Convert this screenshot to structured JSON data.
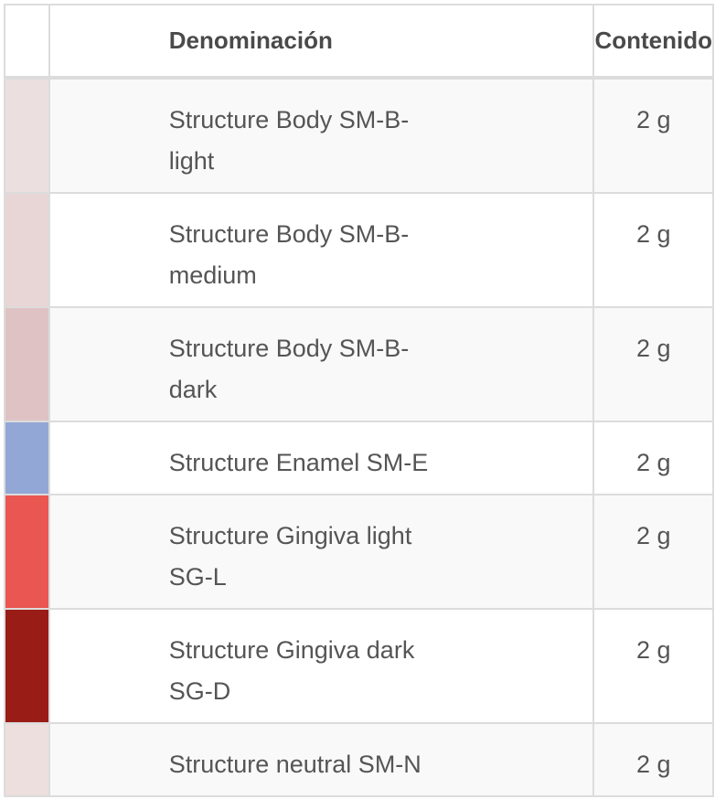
{
  "header": {
    "swatch": "",
    "name": "Denominación",
    "content": "Contenido"
  },
  "rows": [
    {
      "color": "#ecdfdf",
      "lines": [
        "Structure Body SM-B-",
        "light"
      ],
      "content": "2 g"
    },
    {
      "color": "#e8d5d5",
      "lines": [
        "Structure Body SM-B-",
        "medium"
      ],
      "content": "2 g"
    },
    {
      "color": "#dfc3c4",
      "lines": [
        "Structure Body SM-B-",
        "dark"
      ],
      "content": "2 g"
    },
    {
      "color": "#93a7d6",
      "lines": [
        "Structure Enamel SM-E"
      ],
      "content": "2 g"
    },
    {
      "color": "#ea5651",
      "lines": [
        "Structure Gingiva light",
        "SG-L"
      ],
      "content": "2 g"
    },
    {
      "color": "#9a1c16",
      "lines": [
        "Structure Gingiva dark",
        "SG-D"
      ],
      "content": "2 g"
    },
    {
      "color": "#ecdfde",
      "lines": [
        "Structure neutral SM-N"
      ],
      "content": "2 g"
    }
  ]
}
